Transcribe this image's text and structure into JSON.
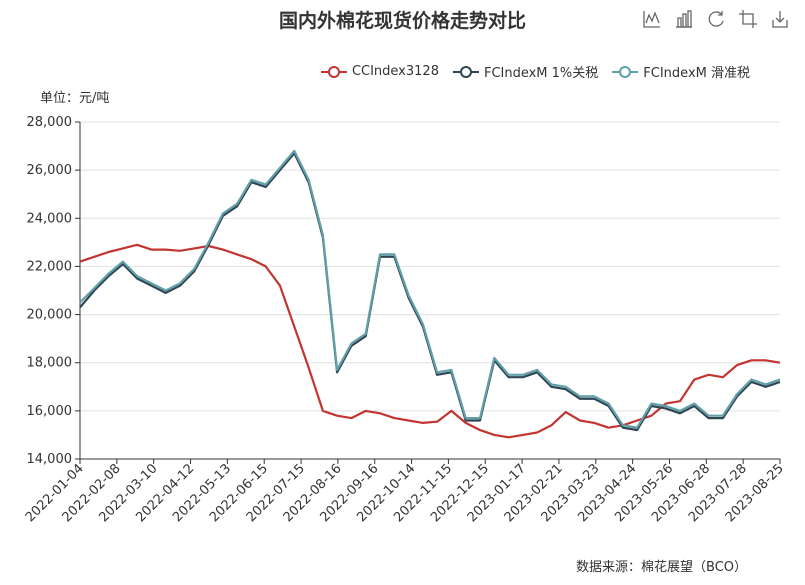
{
  "title": "国内外棉花现货价格走势对比",
  "unit_label": "单位：元/吨",
  "source": "数据来源：棉花展望（BCO）",
  "toolbox": [
    {
      "name": "line-chart-icon"
    },
    {
      "name": "bar-chart-icon"
    },
    {
      "name": "restore-icon"
    },
    {
      "name": "crop-icon"
    },
    {
      "name": "download-icon"
    }
  ],
  "colors": {
    "cc": "#c23531",
    "fc1": "#2f4554",
    "fc2": "#61a0a8",
    "grid": "#e0e0e0",
    "axis": "#333333"
  },
  "chart_data": {
    "type": "line",
    "title": "国内外棉花现货价格走势对比",
    "ylabel": "单位：元/吨",
    "ylim": [
      14000,
      28000
    ],
    "yticks": [
      14000,
      16000,
      18000,
      20000,
      22000,
      24000,
      26000,
      28000
    ],
    "ytick_labels": [
      "14,000",
      "16,000",
      "18,000",
      "20,000",
      "22,000",
      "24,000",
      "26,000",
      "28,000"
    ],
    "x_tick_labels": [
      "2022-01-04",
      "2022-02-08",
      "2022-03-10",
      "2022-04-12",
      "2022-05-13",
      "2022-06-15",
      "2022-07-15",
      "2022-08-16",
      "2022-09-16",
      "2022-10-14",
      "2022-11-15",
      "2022-12-15",
      "2023-01-17",
      "2023-02-21",
      "2023-03-23",
      "2023-04-24",
      "2023-05-26",
      "2023-06-28",
      "2023-07-28",
      "2023-08-25"
    ],
    "series": [
      {
        "name": "CCIndex3128",
        "color": "#c23531",
        "values": [
          22200,
          22400,
          22600,
          22750,
          22900,
          22700,
          22700,
          22650,
          22750,
          22850,
          22700,
          22500,
          22300,
          22000,
          21200,
          19500,
          17800,
          16000,
          15800,
          15700,
          16000,
          15900,
          15700,
          15600,
          15500,
          15550,
          16000,
          15500,
          15200,
          15000,
          14900,
          15000,
          15100,
          15400,
          15950,
          15600,
          15500,
          15300,
          15400,
          15600,
          15800,
          16300,
          16400,
          17300,
          17500,
          17400,
          17900,
          18100,
          18100,
          18000
        ]
      },
      {
        "name": "FCIndexM 1%关税",
        "color": "#2f4554",
        "values": [
          20300,
          21000,
          21600,
          22100,
          21500,
          21200,
          20900,
          21200,
          21800,
          22900,
          24100,
          24500,
          25500,
          25300,
          26000,
          26700,
          25500,
          23200,
          17600,
          18700,
          19100,
          22400,
          22400,
          20700,
          19500,
          17500,
          17600,
          15600,
          15600,
          18100,
          17400,
          17400,
          17600,
          17000,
          16900,
          16500,
          16500,
          16200,
          15300,
          15200,
          16200,
          16100,
          15900,
          16200,
          15700,
          15700,
          16600,
          17200,
          17000,
          17200
        ]
      },
      {
        "name": "FCIndexM 滑准税",
        "color": "#61a0a8",
        "values": [
          20500,
          21100,
          21700,
          22200,
          21600,
          21300,
          21000,
          21300,
          21900,
          23000,
          24200,
          24600,
          25600,
          25400,
          26100,
          26800,
          25600,
          23300,
          17700,
          18800,
          19200,
          22500,
          22500,
          20800,
          19600,
          17600,
          17700,
          15700,
          15700,
          18200,
          17500,
          17500,
          17700,
          17100,
          17000,
          16600,
          16600,
          16300,
          15400,
          15300,
          16300,
          16200,
          16000,
          16300,
          15800,
          15800,
          16700,
          17300,
          17100,
          17300
        ]
      }
    ]
  }
}
